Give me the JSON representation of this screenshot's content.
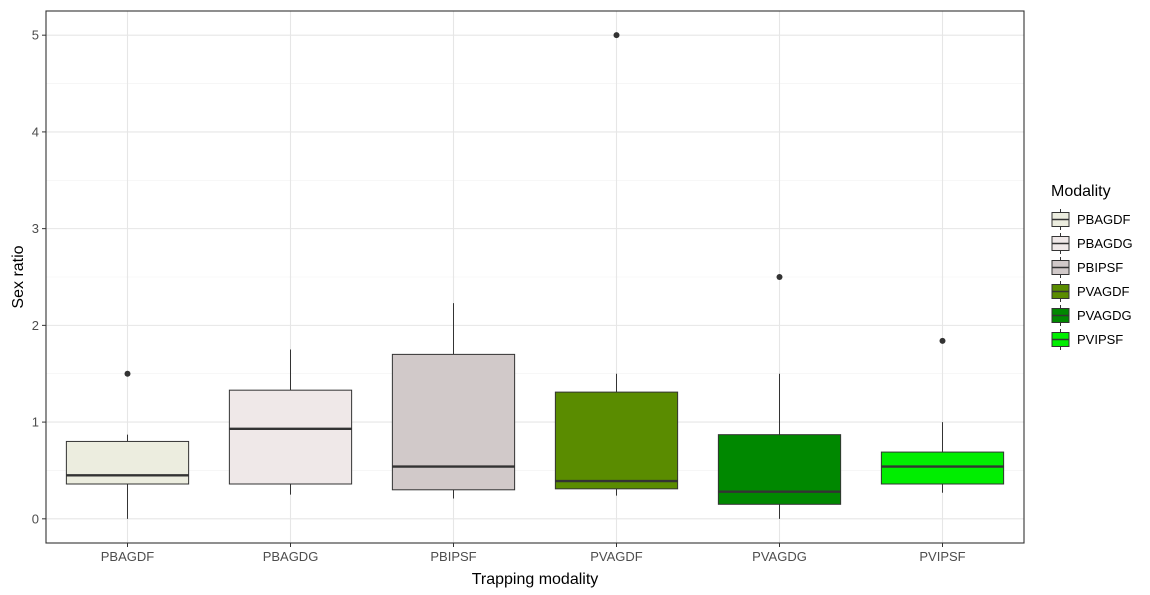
{
  "chart_data": {
    "type": "boxplot",
    "xlabel": "Trapping modality",
    "ylabel": "Sex ratio",
    "ylim": [
      -0.25,
      5.25
    ],
    "yticks": [
      0,
      1,
      2,
      3,
      4,
      5
    ],
    "grid": true,
    "legend": {
      "title": "Modality",
      "placement": "right"
    },
    "categories": [
      "PBAGDF",
      "PBAGDG",
      "PBIPSF",
      "PVAGDF",
      "PVAGDG",
      "PVIPSF"
    ],
    "series": [
      {
        "category": "PBAGDF",
        "color": "#eceddf",
        "whisker_low": 0.0,
        "q1": 0.36,
        "median": 0.45,
        "q3": 0.8,
        "whisker_high": 0.87,
        "outliers": [
          1.5
        ]
      },
      {
        "category": "PBAGDG",
        "color": "#efe8e8",
        "whisker_low": 0.25,
        "q1": 0.36,
        "median": 0.93,
        "q3": 1.33,
        "whisker_high": 1.75,
        "outliers": []
      },
      {
        "category": "PBIPSF",
        "color": "#d1c9c9",
        "whisker_low": 0.21,
        "q1": 0.3,
        "median": 0.54,
        "q3": 1.7,
        "whisker_high": 2.23,
        "outliers": []
      },
      {
        "category": "PVAGDF",
        "color": "#5a8c00",
        "whisker_low": 0.24,
        "q1": 0.31,
        "median": 0.39,
        "q3": 1.31,
        "whisker_high": 1.5,
        "outliers": [
          5.0
        ]
      },
      {
        "category": "PVAGDG",
        "color": "#008800",
        "whisker_low": 0.0,
        "q1": 0.15,
        "median": 0.28,
        "q3": 0.87,
        "whisker_high": 1.5,
        "outliers": [
          2.5
        ]
      },
      {
        "category": "PVIPSF",
        "color": "#00ee00",
        "whisker_low": 0.27,
        "q1": 0.36,
        "median": 0.54,
        "q3": 0.69,
        "whisker_high": 1.0,
        "outliers": [
          1.84
        ]
      }
    ]
  }
}
